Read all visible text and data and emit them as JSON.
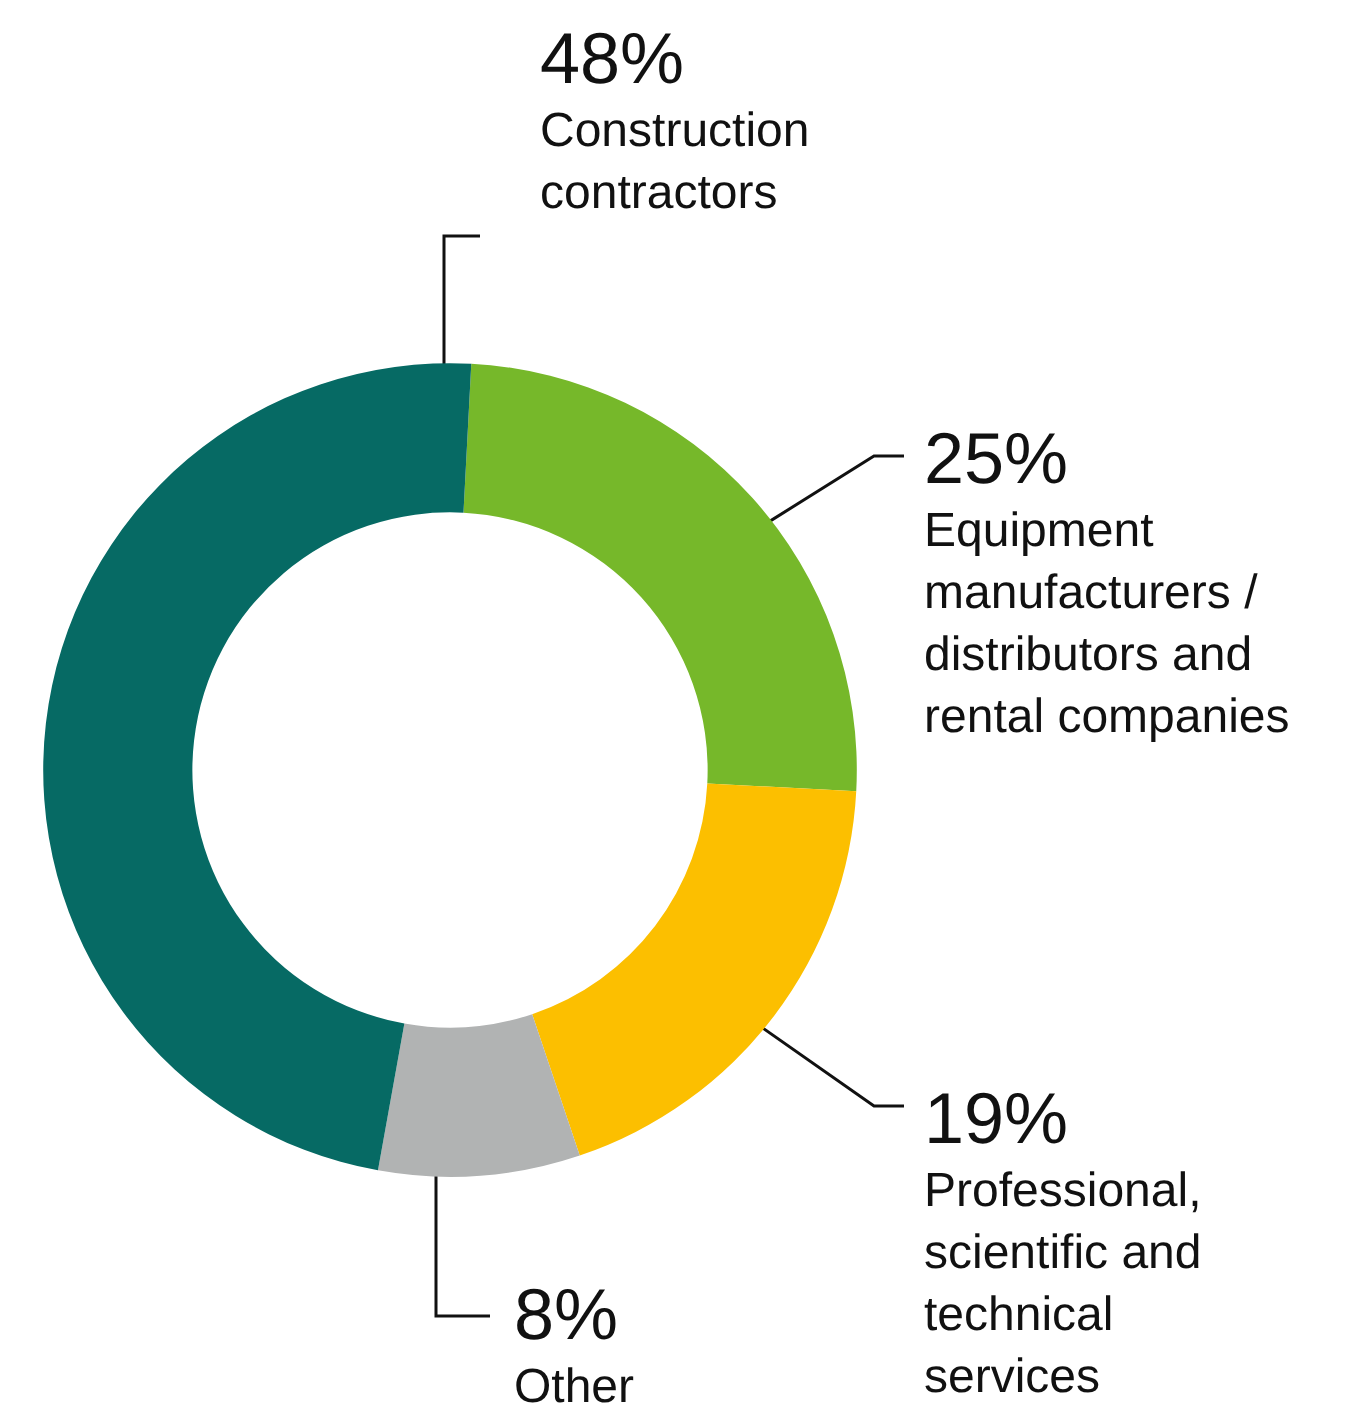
{
  "chart_data": {
    "type": "donut",
    "categories": [
      "Equipment manufacturers / distributors and rental companies",
      "Professional, scientific and technical services",
      "Other",
      "Construction contractors"
    ],
    "values": [
      25,
      19,
      8,
      48
    ],
    "colors": [
      "#76b82a",
      "#fcbf00",
      "#b1b3b3",
      "#066a64"
    ],
    "value_labels": [
      "25%",
      "19%",
      "8%",
      "48%"
    ],
    "legend": false
  }
}
